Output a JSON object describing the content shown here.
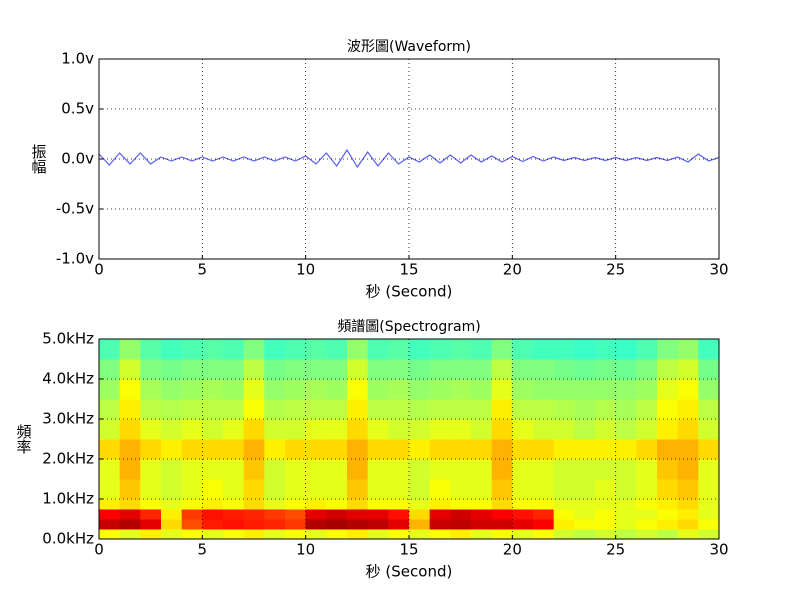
{
  "chart_data": [
    {
      "type": "line",
      "title": "波形圖(Waveform)",
      "xlabel": "秒 (Second)",
      "ylabel": "振幅",
      "xlim": [
        0,
        30
      ],
      "xticks": [
        0,
        5,
        10,
        15,
        20,
        25,
        30
      ],
      "ylim": [
        -1,
        1
      ],
      "yticks": [
        {
          "value": -1,
          "label": "-1.0v"
        },
        {
          "value": -0.5,
          "label": "-0.5v"
        },
        {
          "value": 0,
          "label": "0.0v"
        },
        {
          "value": 0.5,
          "label": "0.5v"
        },
        {
          "value": 1,
          "label": "1.0v"
        }
      ],
      "grid": true,
      "x": [
        0,
        0.5,
        1,
        1.5,
        2,
        2.5,
        3,
        3.5,
        4,
        4.5,
        5,
        5.5,
        6,
        6.5,
        7,
        7.5,
        8,
        8.5,
        9,
        9.5,
        10,
        10.5,
        11,
        11.5,
        12,
        12.5,
        13,
        13.5,
        14,
        14.5,
        15,
        15.5,
        16,
        16.5,
        17,
        17.5,
        18,
        18.5,
        19,
        19.5,
        20,
        20.5,
        21,
        21.5,
        22,
        22.5,
        23,
        23.5,
        24,
        24.5,
        25,
        25.5,
        26,
        26.5,
        27,
        27.5,
        28,
        28.5,
        29,
        29.5,
        30
      ],
      "series": [
        {
          "color": "#5a5ef0",
          "values": [
            0.05,
            -0.06,
            0.06,
            -0.05,
            0.06,
            -0.05,
            0.02,
            -0.02,
            0.02,
            -0.02,
            0.02,
            -0.02,
            0.02,
            -0.02,
            0.02,
            -0.02,
            0.02,
            -0.02,
            0.02,
            -0.02,
            0.03,
            -0.05,
            0.06,
            -0.07,
            0.09,
            -0.08,
            0.07,
            -0.07,
            0.06,
            -0.05,
            0.02,
            -0.03,
            0.04,
            -0.04,
            0.04,
            -0.04,
            0.04,
            -0.03,
            0.03,
            -0.03,
            0.025,
            -0.025,
            0.025,
            -0.02,
            0.02,
            -0.015,
            0.015,
            -0.015,
            0.015,
            -0.015,
            0.015,
            -0.015,
            0.015,
            -0.015,
            0.015,
            -0.015,
            0.02,
            -0.03,
            0.05,
            -0.02,
            0.015
          ]
        }
      ]
    },
    {
      "type": "heatmap",
      "title": "頻譜圖(Spectrogram)",
      "xlabel": "秒 (Second)",
      "ylabel": "頻率",
      "xlim": [
        0,
        30
      ],
      "xticks": [
        0,
        5,
        10,
        15,
        20,
        25,
        30
      ],
      "ylim": [
        0,
        5
      ],
      "yticks": [
        {
          "value": 0,
          "label": "0.0kHz"
        },
        {
          "value": 1,
          "label": "1.0kHz"
        },
        {
          "value": 2,
          "label": "2.0kHz"
        },
        {
          "value": 3,
          "label": "3.0kHz"
        },
        {
          "value": 4,
          "label": "4.0kHz"
        },
        {
          "value": 5,
          "label": "5.0kHz"
        }
      ],
      "grid": true,
      "colormap": "jet",
      "clim": [
        0,
        1
      ],
      "xbins": [
        0,
        1,
        2,
        3,
        4,
        5,
        6,
        7,
        8,
        9,
        10,
        11,
        12,
        13,
        14,
        15,
        16,
        17,
        18,
        19,
        20,
        21,
        22,
        23,
        24,
        25,
        26,
        27,
        28,
        29,
        30
      ],
      "ybins": [
        0,
        0.25,
        0.5,
        0.75,
        1,
        1.5,
        2,
        2.5,
        3,
        3.5,
        4,
        4.5,
        5
      ],
      "z": [
        [
          0.62,
          0.6,
          0.64,
          0.6,
          0.62,
          0.6,
          0.62,
          0.64,
          0.6,
          0.62,
          0.6,
          0.62,
          0.64,
          0.6,
          0.62,
          0.6,
          0.62,
          0.64,
          0.6,
          0.62,
          0.6,
          0.62,
          0.58,
          0.56,
          0.58,
          0.56,
          0.58,
          0.56,
          0.6,
          0.58
        ],
        [
          0.93,
          0.95,
          0.9,
          0.66,
          0.8,
          0.85,
          0.86,
          0.85,
          0.84,
          0.82,
          0.95,
          0.96,
          0.95,
          0.94,
          0.9,
          0.7,
          0.93,
          0.94,
          0.92,
          0.92,
          0.9,
          0.88,
          0.64,
          0.62,
          0.62,
          0.6,
          0.62,
          0.64,
          0.66,
          0.62
        ],
        [
          0.88,
          0.9,
          0.84,
          0.64,
          0.82,
          0.86,
          0.85,
          0.84,
          0.82,
          0.8,
          0.9,
          0.92,
          0.9,
          0.9,
          0.86,
          0.66,
          0.9,
          0.92,
          0.9,
          0.88,
          0.86,
          0.84,
          0.62,
          0.6,
          0.62,
          0.6,
          0.6,
          0.62,
          0.64,
          0.6
        ],
        [
          0.64,
          0.66,
          0.62,
          0.6,
          0.62,
          0.64,
          0.62,
          0.66,
          0.6,
          0.62,
          0.64,
          0.62,
          0.66,
          0.62,
          0.62,
          0.6,
          0.64,
          0.62,
          0.62,
          0.66,
          0.62,
          0.62,
          0.6,
          0.6,
          0.6,
          0.6,
          0.62,
          0.64,
          0.66,
          0.6
        ],
        [
          0.6,
          0.68,
          0.6,
          0.58,
          0.6,
          0.62,
          0.6,
          0.66,
          0.58,
          0.6,
          0.6,
          0.6,
          0.68,
          0.6,
          0.6,
          0.58,
          0.62,
          0.6,
          0.6,
          0.68,
          0.6,
          0.6,
          0.58,
          0.58,
          0.6,
          0.58,
          0.6,
          0.66,
          0.68,
          0.6
        ],
        [
          0.6,
          0.7,
          0.6,
          0.58,
          0.6,
          0.6,
          0.6,
          0.68,
          0.58,
          0.6,
          0.6,
          0.6,
          0.7,
          0.6,
          0.6,
          0.58,
          0.6,
          0.6,
          0.6,
          0.7,
          0.6,
          0.6,
          0.58,
          0.58,
          0.58,
          0.58,
          0.6,
          0.68,
          0.7,
          0.6
        ],
        [
          0.66,
          0.7,
          0.66,
          0.64,
          0.66,
          0.66,
          0.66,
          0.7,
          0.64,
          0.66,
          0.66,
          0.66,
          0.7,
          0.66,
          0.66,
          0.64,
          0.66,
          0.66,
          0.66,
          0.7,
          0.66,
          0.66,
          0.64,
          0.64,
          0.64,
          0.64,
          0.66,
          0.7,
          0.7,
          0.66
        ],
        [
          0.58,
          0.66,
          0.6,
          0.58,
          0.6,
          0.58,
          0.6,
          0.66,
          0.58,
          0.58,
          0.6,
          0.6,
          0.66,
          0.6,
          0.58,
          0.58,
          0.6,
          0.6,
          0.58,
          0.66,
          0.6,
          0.58,
          0.58,
          0.56,
          0.58,
          0.56,
          0.58,
          0.64,
          0.66,
          0.58
        ],
        [
          0.56,
          0.64,
          0.56,
          0.55,
          0.56,
          0.56,
          0.56,
          0.62,
          0.55,
          0.56,
          0.56,
          0.56,
          0.64,
          0.56,
          0.56,
          0.55,
          0.56,
          0.56,
          0.56,
          0.64,
          0.56,
          0.56,
          0.55,
          0.54,
          0.55,
          0.54,
          0.56,
          0.62,
          0.64,
          0.56
        ],
        [
          0.53,
          0.62,
          0.54,
          0.52,
          0.53,
          0.54,
          0.53,
          0.6,
          0.52,
          0.53,
          0.54,
          0.53,
          0.62,
          0.53,
          0.54,
          0.52,
          0.53,
          0.54,
          0.53,
          0.6,
          0.53,
          0.52,
          0.52,
          0.52,
          0.52,
          0.52,
          0.53,
          0.6,
          0.62,
          0.52
        ],
        [
          0.5,
          0.58,
          0.5,
          0.49,
          0.5,
          0.5,
          0.5,
          0.56,
          0.49,
          0.5,
          0.5,
          0.5,
          0.58,
          0.5,
          0.5,
          0.49,
          0.5,
          0.5,
          0.5,
          0.56,
          0.5,
          0.5,
          0.49,
          0.48,
          0.49,
          0.48,
          0.5,
          0.56,
          0.58,
          0.49
        ],
        [
          0.45,
          0.52,
          0.46,
          0.44,
          0.45,
          0.46,
          0.45,
          0.5,
          0.44,
          0.45,
          0.46,
          0.45,
          0.52,
          0.45,
          0.46,
          0.44,
          0.45,
          0.46,
          0.45,
          0.5,
          0.45,
          0.44,
          0.44,
          0.43,
          0.44,
          0.43,
          0.45,
          0.5,
          0.52,
          0.44
        ]
      ]
    }
  ]
}
